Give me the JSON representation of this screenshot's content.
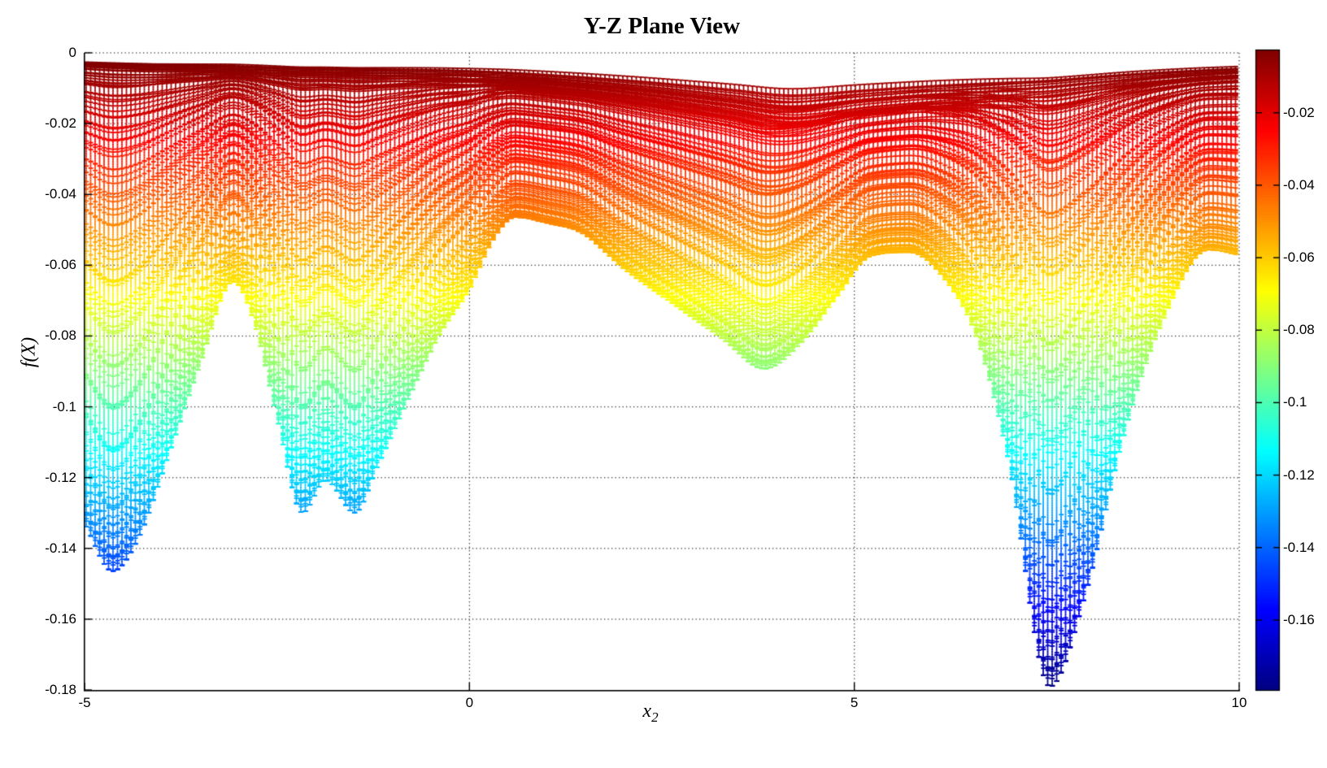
{
  "figure": {
    "background": "#ffffff"
  },
  "chart_data": {
    "type": "surface-mesh-projection",
    "view": "Y-Z plane (side view of 3-D mesh surface)",
    "title": "Y-Z Plane View",
    "xlabel": {
      "base": "x",
      "sub": "2"
    },
    "ylabel": "f(X)",
    "xlim": [
      -5,
      10
    ],
    "ylim": [
      -0.18,
      0
    ],
    "caxis": [
      -0.1793,
      -0.0028
    ],
    "colormap": "jet",
    "grid": true,
    "x_ticks": [
      {
        "label": "-5",
        "value": -5
      },
      {
        "label": "0",
        "value": 0
      },
      {
        "label": "5",
        "value": 5
      },
      {
        "label": "10",
        "value": 10
      }
    ],
    "y_ticks": [
      {
        "label": "0",
        "value": 0
      },
      {
        "label": "-0.02",
        "value": -0.02
      },
      {
        "label": "-0.04",
        "value": -0.04
      },
      {
        "label": "-0.06",
        "value": -0.06
      },
      {
        "label": "-0.08",
        "value": -0.08
      },
      {
        "label": "-0.1",
        "value": -0.1
      },
      {
        "label": "-0.12",
        "value": -0.12
      },
      {
        "label": "-0.14",
        "value": -0.14
      },
      {
        "label": "-0.16",
        "value": -0.16
      },
      {
        "label": "-0.18",
        "value": -0.18
      }
    ],
    "colorbar": {
      "ticks": [
        {
          "label": "-0.02",
          "value": -0.02
        },
        {
          "label": "-0.04",
          "value": -0.04
        },
        {
          "label": "-0.06",
          "value": -0.06
        },
        {
          "label": "-0.08",
          "value": -0.08
        },
        {
          "label": "-0.1",
          "value": -0.1
        },
        {
          "label": "-0.12",
          "value": -0.12
        },
        {
          "label": "-0.14",
          "value": -0.14
        },
        {
          "label": "-0.16",
          "value": -0.16
        }
      ]
    },
    "local_minima": [
      {
        "x2": -4.64,
        "f": -0.146
      },
      {
        "x2": -2.17,
        "f": -0.13
      },
      {
        "x2": -1.49,
        "f": -0.13
      },
      {
        "x2": 3.83,
        "f": -0.089
      },
      {
        "x2": 7.54,
        "f": -0.179
      }
    ],
    "local_maxima_of_lower_envelope": [
      {
        "x2": -3.07,
        "f": -0.065
      },
      {
        "x2": 0.59,
        "f": -0.046
      },
      {
        "x2": 5.7,
        "f": -0.056
      },
      {
        "x2": 9.6,
        "f": -0.056
      }
    ],
    "envelope_lower": {
      "x2": [
        -5.0,
        -4.64,
        -4.3,
        -3.9,
        -3.5,
        -3.07,
        -2.8,
        -2.5,
        -2.17,
        -1.87,
        -1.49,
        -1.2,
        -0.8,
        -0.4,
        0.0,
        0.3,
        0.59,
        1.0,
        1.47,
        2.0,
        2.7,
        3.3,
        3.83,
        4.3,
        4.8,
        5.2,
        5.7,
        6.1,
        6.6,
        7.0,
        7.54,
        8.0,
        8.5,
        9.0,
        9.6,
        10.0
      ],
      "f": [
        -0.133,
        -0.1464,
        -0.137,
        -0.113,
        -0.088,
        -0.0646,
        -0.076,
        -0.103,
        -0.1299,
        -0.1207,
        -0.1299,
        -0.117,
        -0.098,
        -0.08,
        -0.0667,
        -0.053,
        -0.0464,
        -0.048,
        -0.051,
        -0.0609,
        -0.0717,
        -0.081,
        -0.0892,
        -0.082,
        -0.068,
        -0.0575,
        -0.0563,
        -0.062,
        -0.081,
        -0.115,
        -0.179,
        -0.153,
        -0.108,
        -0.076,
        -0.0556,
        -0.057
      ]
    },
    "envelope_upper": {
      "x2": [
        -5.0,
        -2.5,
        0.0,
        2.0,
        3.4,
        4.2,
        5.0,
        6.0,
        7.0,
        8.5,
        10.0
      ],
      "f": [
        -0.0025,
        -0.004,
        -0.0052,
        -0.008,
        -0.0108,
        -0.0125,
        -0.0113,
        -0.0098,
        -0.0085,
        -0.0062,
        -0.0045
      ]
    },
    "slices": {
      "count": 110,
      "base_spread": [
        0.75,
        1.65
      ],
      "depth_exponent": 1.25
    }
  }
}
